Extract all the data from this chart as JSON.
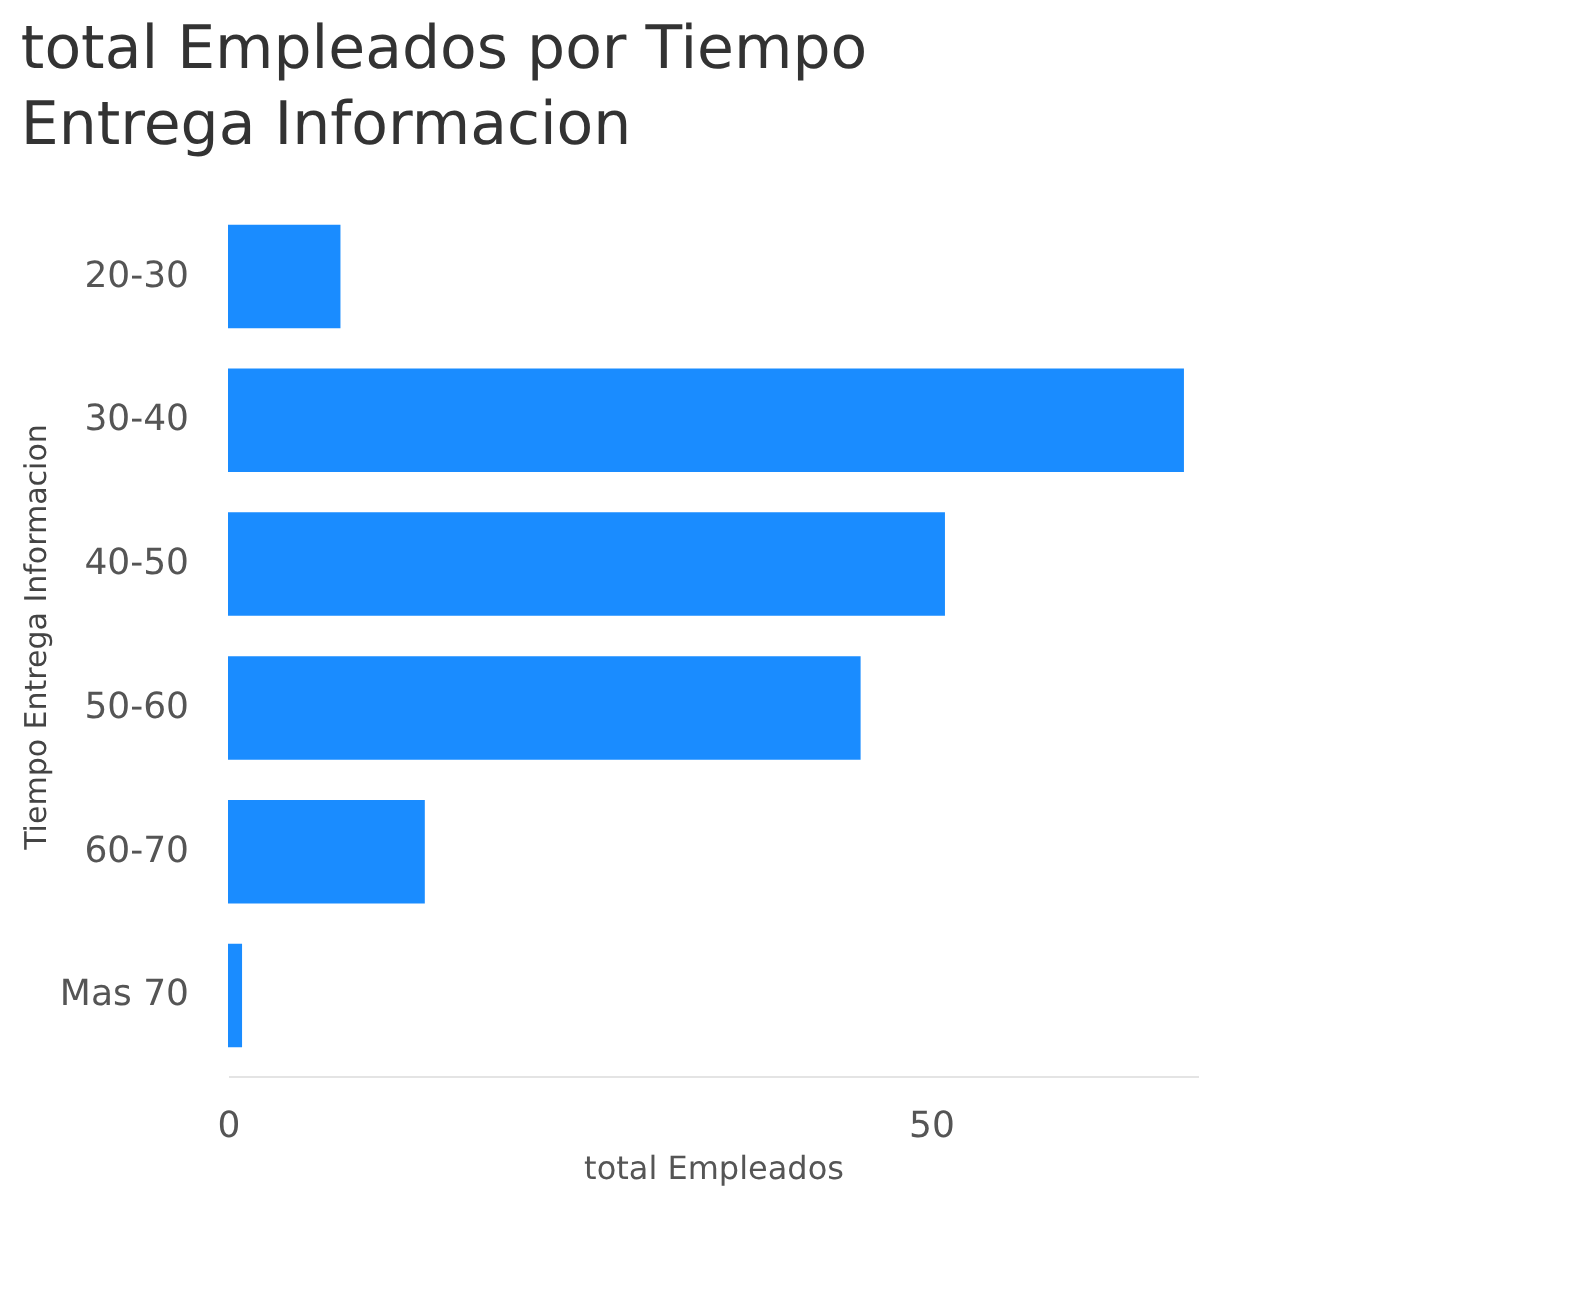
{
  "chart_data": {
    "type": "bar",
    "orientation": "horizontal",
    "title": "total Empleados por Tiempo Entrega Informacion",
    "xlabel": "total Empleados",
    "ylabel": "Tiempo Entrega Informacion",
    "categories": [
      "20-30",
      "30-40",
      "40-50",
      "50-60",
      "60-70",
      "Mas 70"
    ],
    "values": [
      8,
      68,
      51,
      45,
      14,
      1
    ],
    "color": "#1a8cff",
    "xlim": [
      0,
      69
    ],
    "xticks": [
      0,
      50
    ],
    "grid": false
  }
}
